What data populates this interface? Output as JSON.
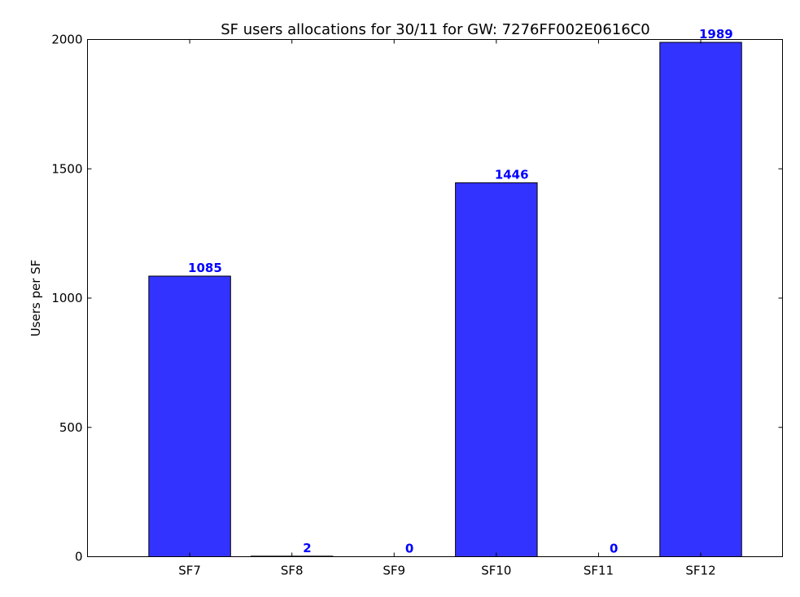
{
  "chart_data": {
    "type": "bar",
    "title": "SF users allocations for 30/11 for GW: 7276FF002E0616C0",
    "xlabel": "",
    "ylabel": "Users per SF",
    "categories": [
      "SF7",
      "SF8",
      "SF9",
      "SF10",
      "SF11",
      "SF12"
    ],
    "values": [
      1085,
      2,
      0,
      1446,
      0,
      1989
    ],
    "value_labels": [
      "1085",
      "2",
      "0",
      "1446",
      "0",
      "1989"
    ],
    "ylim": [
      0,
      2000
    ],
    "yticks": [
      0,
      500,
      1000,
      1500,
      2000
    ],
    "ytick_labels": [
      "0",
      "500",
      "1000",
      "1500",
      "2000"
    ],
    "grid": false,
    "legend": "none",
    "bar_color": "#3333ff",
    "label_color": "#0000ff"
  }
}
